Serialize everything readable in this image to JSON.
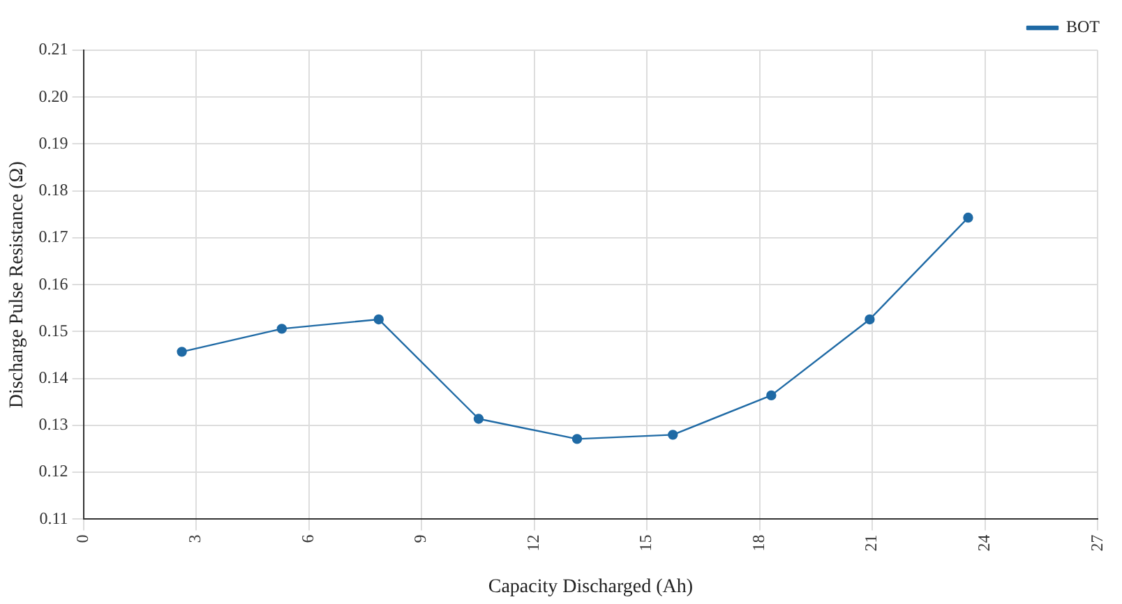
{
  "chart_data": {
    "type": "line",
    "xlabel": "Capacity Discharged (Ah)",
    "ylabel": "Discharge Pulse Resistance (Ω)",
    "x": [
      2.62,
      5.28,
      7.86,
      10.52,
      13.14,
      15.69,
      18.31,
      20.93,
      23.55
    ],
    "series": [
      {
        "name": "BOT",
        "color": "#1f6aa5",
        "values": [
          0.1457,
          0.1506,
          0.1526,
          0.1314,
          0.1271,
          0.128,
          0.1364,
          0.1526,
          0.1743
        ]
      }
    ],
    "xlim": [
      0,
      27
    ],
    "xticks": [
      0,
      3,
      6,
      9,
      12,
      15,
      18,
      21,
      24,
      27
    ],
    "ylim": [
      0.11,
      0.21
    ],
    "yticks": [
      0.11,
      0.12,
      0.13,
      0.14,
      0.15,
      0.16,
      0.17,
      0.18,
      0.19,
      {
        "value": 0.2,
        "label": "0.20"
      },
      0.21
    ],
    "grid": true,
    "legend": "top right",
    "marker": "circle",
    "line_style": "solid"
  }
}
